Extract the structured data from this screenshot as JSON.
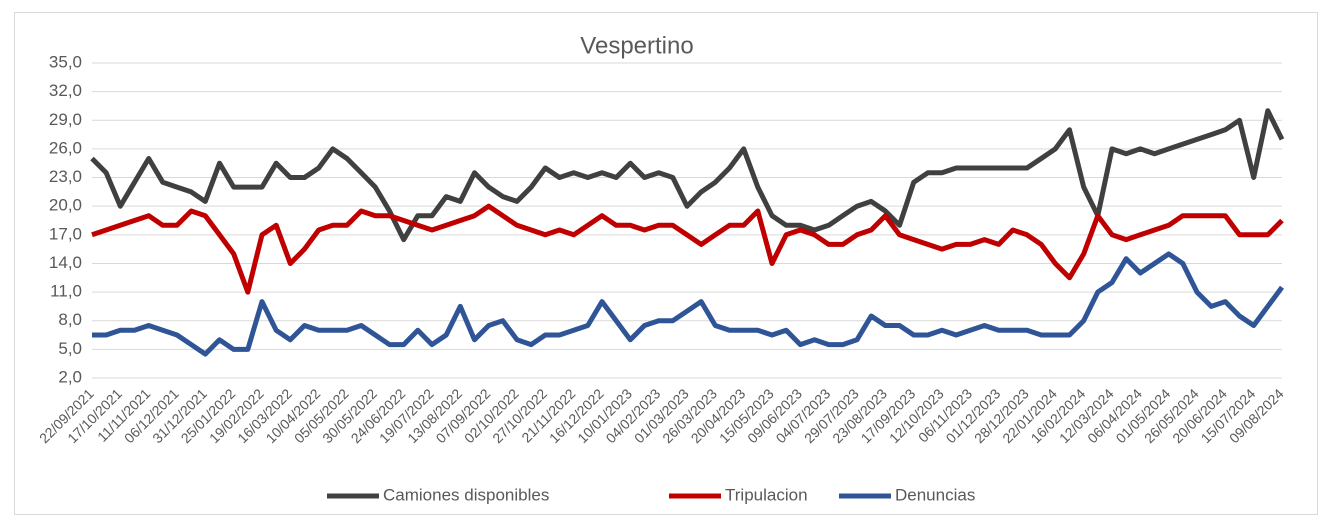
{
  "chart_data": {
    "type": "line",
    "title": "Vespertino",
    "categories": [
      "22/09/2021",
      null,
      "17/10/2021",
      null,
      "11/11/2021",
      null,
      "06/12/2021",
      null,
      "31/12/2021",
      null,
      "25/01/2022",
      null,
      "19/02/2022",
      null,
      "16/03/2022",
      null,
      "10/04/2022",
      null,
      "05/05/2022",
      null,
      "30/05/2022",
      null,
      "24/06/2022",
      null,
      "19/07/2022",
      null,
      "13/08/2022",
      null,
      "07/09/2022",
      null,
      "02/10/2022",
      null,
      "27/10/2022",
      null,
      "21/11/2022",
      null,
      "16/12/2022",
      null,
      "10/01/2023",
      null,
      "04/02/2023",
      null,
      "01/03/2023",
      null,
      "26/03/2023",
      null,
      "20/04/2023",
      null,
      "15/05/2023",
      null,
      "09/06/2023",
      null,
      "04/07/2023",
      null,
      "29/07/2023",
      null,
      "23/08/2023",
      null,
      "17/09/2023",
      null,
      "12/10/2023",
      null,
      "06/11/2023",
      null,
      "01/12/2023",
      null,
      "28/12/2023",
      null,
      "22/01/2024",
      null,
      "16/02/2024",
      null,
      "12/03/2024",
      null,
      "06/04/2024",
      null,
      "01/05/2024",
      null,
      "26/05/2024",
      null,
      "20/06/2024",
      null,
      "15/07/2024",
      null,
      "09/08/2024"
    ],
    "series": [
      {
        "name": "Camiones disponibles",
        "color": "#404040",
        "values": [
          25,
          23.5,
          20,
          22.5,
          25,
          22.5,
          22,
          21.5,
          20.5,
          24.5,
          22,
          22,
          22,
          24.5,
          23,
          23,
          24,
          26,
          25,
          23.5,
          22,
          19.5,
          16.5,
          19,
          19,
          21,
          20.5,
          23.5,
          22,
          21,
          20.5,
          22,
          24,
          23,
          23.5,
          23,
          23.5,
          23,
          24.5,
          23,
          23.5,
          23,
          20,
          21.5,
          22.5,
          24,
          26,
          22,
          19,
          18,
          18,
          17.5,
          18,
          19,
          20,
          20.5,
          19.5,
          18,
          22.5,
          23.5,
          23.5,
          24,
          24,
          24,
          24,
          24,
          24,
          25,
          26,
          28,
          22,
          19,
          26,
          25.5,
          26,
          25.5,
          26,
          26.5,
          27,
          27.5,
          28,
          29,
          23,
          30,
          27
        ]
      },
      {
        "name": "Tripulacion",
        "color": "#c00000",
        "values": [
          17,
          17.5,
          18,
          18.5,
          19,
          18,
          18,
          19.5,
          19,
          17,
          15,
          11,
          17,
          18,
          14,
          15.5,
          17.5,
          18,
          18,
          19.5,
          19,
          19,
          18.5,
          18,
          17.5,
          18,
          18.5,
          19,
          20,
          19,
          18,
          17.5,
          17,
          17.5,
          17,
          18,
          19,
          18,
          18,
          17.5,
          18,
          18,
          17,
          16,
          17,
          18,
          18,
          19.5,
          14,
          17,
          17.5,
          17,
          16,
          16,
          17,
          17.5,
          19,
          17,
          16.5,
          16,
          15.5,
          16,
          16,
          16.5,
          16,
          17.5,
          17,
          16,
          14,
          12.5,
          15,
          19,
          17,
          16.5,
          17,
          17.5,
          18,
          19,
          19,
          19,
          19,
          17,
          17,
          17,
          18.5
        ]
      },
      {
        "name": "Denuncias",
        "color": "#2f5597",
        "values": [
          6.5,
          6.5,
          7,
          7,
          7.5,
          7,
          6.5,
          5.5,
          4.5,
          6,
          5,
          5,
          10,
          7,
          6,
          7.5,
          7,
          7,
          7,
          7.5,
          6.5,
          5.5,
          5.5,
          7,
          5.5,
          6.5,
          9.5,
          6,
          7.5,
          8,
          6,
          5.5,
          6.5,
          6.5,
          7,
          7.5,
          10,
          8,
          6,
          7.5,
          8,
          8,
          9,
          10,
          7.5,
          7,
          7,
          7,
          6.5,
          7,
          5.5,
          6,
          5.5,
          5.5,
          6,
          8.5,
          7.5,
          7.5,
          6.5,
          6.5,
          7,
          6.5,
          7,
          7.5,
          7,
          7,
          7,
          6.5,
          6.5,
          6.5,
          8,
          11,
          12,
          14.5,
          13,
          14,
          15,
          14,
          11,
          9.5,
          10,
          8.5,
          7.5,
          9.5,
          11.5
        ]
      }
    ],
    "ylim": [
      2,
      35
    ],
    "yticks": [
      {
        "value": 2,
        "label": "2,0"
      },
      {
        "value": 5,
        "label": "5,0"
      },
      {
        "value": 8,
        "label": "8,0"
      },
      {
        "value": 11,
        "label": "11,0"
      },
      {
        "value": 14,
        "label": "14,0"
      },
      {
        "value": 17,
        "label": "17,0"
      },
      {
        "value": 20,
        "label": "20,0"
      },
      {
        "value": 23,
        "label": "23,0"
      },
      {
        "value": 26,
        "label": "26,0"
      },
      {
        "value": 29,
        "label": "29,0"
      },
      {
        "value": 32,
        "label": "32,0"
      },
      {
        "value": 35,
        "label": "35,0"
      }
    ],
    "grid": true,
    "legend": "bottom"
  }
}
